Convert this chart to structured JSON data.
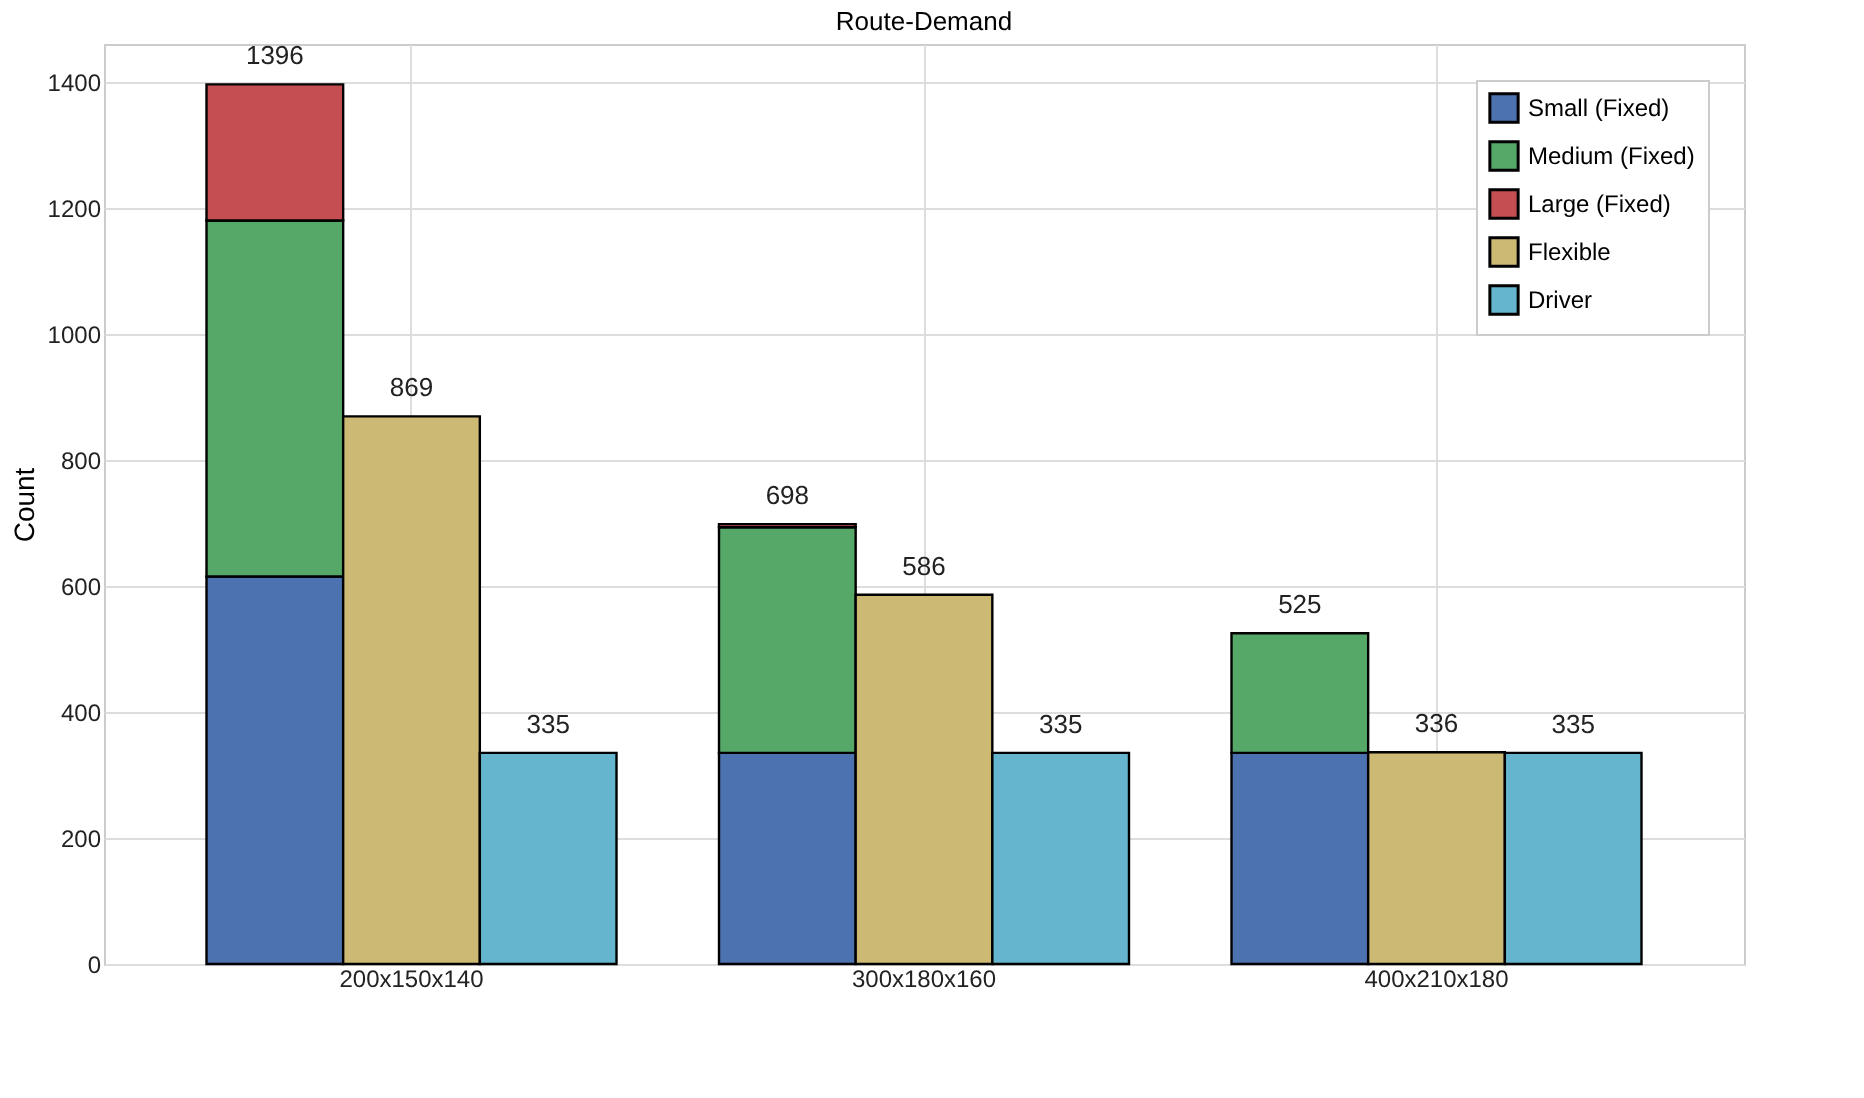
{
  "chart_data": {
    "type": "bar",
    "title": "Route-Demand",
    "ylabel": "Count",
    "categories": [
      "200x150x140",
      "300x180x160",
      "400x210x180"
    ],
    "series": [
      {
        "name": "Small (Fixed)",
        "color": "#4c72b0",
        "values": [
          615,
          335,
          335
        ],
        "base": [
          0,
          0,
          0
        ]
      },
      {
        "name": "Medium (Fixed)",
        "color": "#55a868",
        "values": [
          565,
          358,
          190
        ],
        "base": [
          615,
          335,
          335
        ]
      },
      {
        "name": "Large (Fixed)",
        "color": "#c44e52",
        "values": [
          216,
          5,
          null
        ],
        "base": [
          1180,
          693,
          null
        ]
      },
      {
        "name": "Flexible",
        "color": "#ccb974",
        "values": [
          869,
          586,
          336
        ],
        "value_labels": [
          "869",
          "586",
          "336"
        ]
      },
      {
        "name": "Driver",
        "color": "#64b5cd",
        "values": [
          335,
          335,
          335
        ],
        "value_labels": [
          "335",
          "335",
          "335"
        ]
      }
    ],
    "annotations": [
      "1396",
      "698",
      "525"
    ],
    "ylim": [
      0,
      1460
    ],
    "yticks": [
      0,
      200,
      400,
      600,
      800,
      1000,
      1200,
      1400
    ],
    "grid": true,
    "legend": "top right"
  }
}
